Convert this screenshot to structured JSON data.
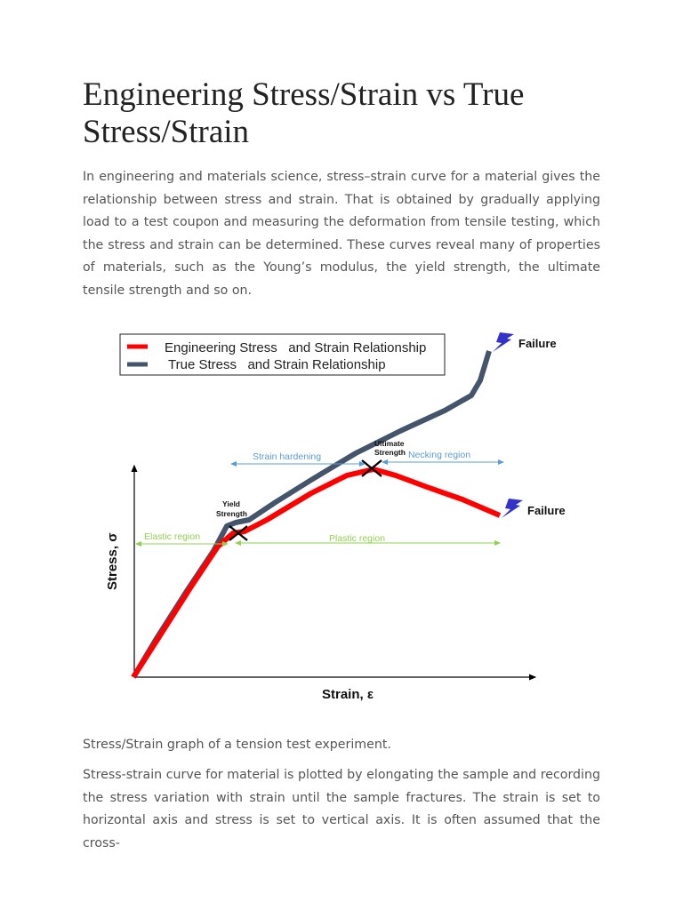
{
  "article": {
    "title": "Engineering Stress/Strain vs True Stress/Strain",
    "intro": "In engineering and materials science, stress–strain curve for a material gives the relationship between stress and strain. That is obtained by gradually applying load to a test coupon and measuring the deformation from tensile testing, which the stress and strain can be determined. These curves reveal many of properties of materials, such as the Young’s modulus, the yield strength, the ultimate tensile strength and so on.",
    "figure_caption": "Stress/Strain graph of a tension test experiment.",
    "body": "Stress-strain curve for material is plotted by elongating the sample and recording the stress variation with strain until the sample fractures. The strain is set to horizontal axis and stress is set to vertical axis. It is often assumed that the cross-"
  },
  "diagram": {
    "legend": [
      {
        "label": "Engineering Stress   and Strain Relationship",
        "color": "#ff0000"
      },
      {
        "label": "True Stress   and Strain Relationship",
        "color": "#44546a"
      }
    ],
    "x_axis_label": "Strain, ε",
    "y_axis_label": "Stress, σ",
    "annotations": {
      "failure_true": "Failure",
      "failure_eng": "Failure",
      "ultimate_1": "Ultimate",
      "ultimate_2": "Strength",
      "yield_1": "Yield",
      "yield_2": "Strength",
      "strain_hardening": "Strain hardening",
      "necking_region": "Necking region",
      "elastic_region": "Elastic region",
      "plastic_region": "Plastic region"
    },
    "colors": {
      "blue_arrow": "#5b9bd5",
      "green_arrow": "#92d050",
      "bolt": "#3333cc"
    }
  }
}
